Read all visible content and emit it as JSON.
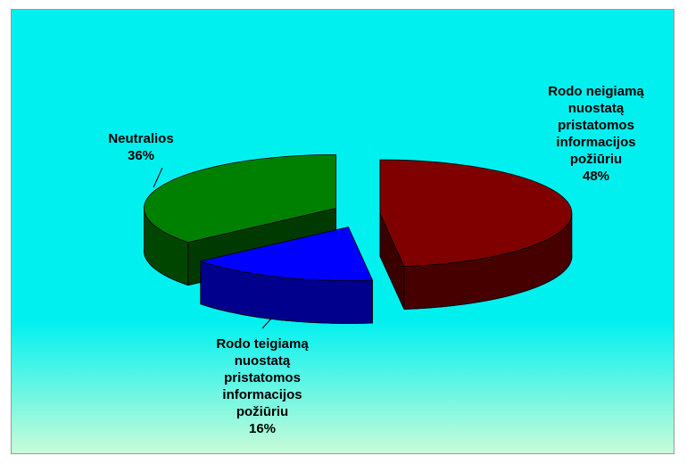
{
  "chart_data": {
    "type": "pie",
    "categories": [
      "Rodo neigiamą nuostatą pristatomos informacijos požiūriu",
      "Rodo teigiamą nuostatą pristatomos informacijos požiūriu",
      "Neutralios"
    ],
    "values": [
      48,
      16,
      36
    ],
    "value_labels": [
      "48%",
      "16%",
      "36%"
    ],
    "colors": [
      "#800000",
      "#0000ff",
      "#008000"
    ]
  }
}
